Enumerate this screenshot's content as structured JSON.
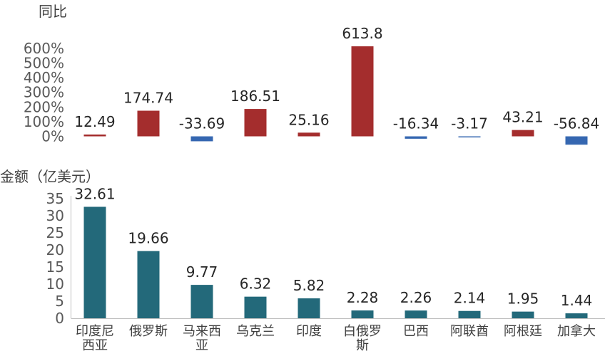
{
  "chart_data": [
    {
      "type": "bar",
      "ylabel": "同比",
      "categories": [
        "印度尼西亚",
        "俄罗斯",
        "马来西亚",
        "乌克兰",
        "印度",
        "白俄罗斯",
        "巴西",
        "阿联酋",
        "阿根廷",
        "加拿大"
      ],
      "values": [
        12.49,
        174.74,
        -33.69,
        186.51,
        25.16,
        613.8,
        -16.34,
        -3.17,
        43.21,
        -56.84
      ],
      "value_labels": [
        "12.49",
        "174.74",
        "-33.69",
        "186.51",
        "25.16",
        "613.8",
        "-16.34",
        "-3.17",
        "43.21",
        "-56.84"
      ],
      "yticks": [
        "0%",
        "100%",
        "200%",
        "300%",
        "400%",
        "500%",
        "600%"
      ],
      "ytick_values": [
        0,
        100,
        200,
        300,
        400,
        500,
        600
      ],
      "ylim": [
        -56.84,
        613.8
      ],
      "colors": {
        "positive": "#A42D2D",
        "negative": "#3567B1"
      },
      "grid": false,
      "legend": "none"
    },
    {
      "type": "bar",
      "ylabel": "金额（亿美元）",
      "categories": [
        "印度尼西亚",
        "俄罗斯",
        "马来西亚",
        "乌克兰",
        "印度",
        "白俄罗斯",
        "巴西",
        "阿联酋",
        "阿根廷",
        "加拿大"
      ],
      "category_lines": [
        [
          "印度尼",
          "西亚"
        ],
        [
          "俄罗斯"
        ],
        [
          "马来西",
          "亚"
        ],
        [
          "乌克兰"
        ],
        [
          "印度"
        ],
        [
          "白俄罗",
          "斯"
        ],
        [
          "巴西"
        ],
        [
          "阿联酋"
        ],
        [
          "阿根廷"
        ],
        [
          "加拿大"
        ]
      ],
      "values": [
        32.61,
        19.66,
        9.77,
        6.32,
        5.82,
        2.28,
        2.26,
        2.14,
        1.95,
        1.44
      ],
      "value_labels": [
        "32.61",
        "19.66",
        "9.77",
        "6.32",
        "5.82",
        "2.28",
        "2.26",
        "2.14",
        "1.95",
        "1.44"
      ],
      "yticks": [
        "0",
        "5",
        "10",
        "15",
        "20",
        "25",
        "30",
        "35"
      ],
      "ytick_values": [
        0,
        5,
        10,
        15,
        20,
        25,
        30,
        35
      ],
      "ylim": [
        0,
        35
      ],
      "colors": {
        "bar": "#23697A",
        "axis": "#bfbfbf"
      },
      "grid": false,
      "legend": "none"
    }
  ]
}
